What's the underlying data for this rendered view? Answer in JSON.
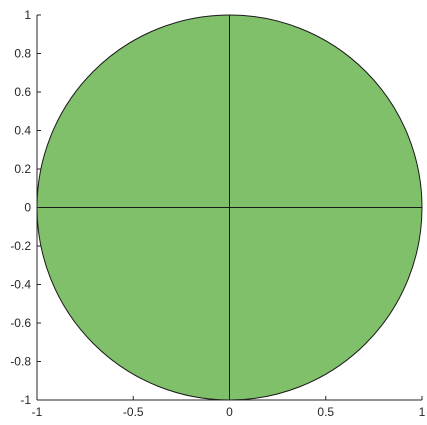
{
  "chart_data": {
    "type": "area",
    "title": "",
    "xlabel": "",
    "ylabel": "",
    "xlim": [
      -1,
      1
    ],
    "ylim": [
      -1,
      1
    ],
    "grid": false,
    "shape": {
      "kind": "unit-disk",
      "center": [
        0,
        0
      ],
      "radius": 1,
      "fill": "#80c06a",
      "divider_lines": [
        {
          "from": [
            -1,
            0
          ],
          "to": [
            1,
            0
          ]
        },
        {
          "from": [
            0,
            -1
          ],
          "to": [
            0,
            1
          ]
        }
      ]
    },
    "x_ticks": [
      {
        "value": -1,
        "label": "-1"
      },
      {
        "value": -0.5,
        "label": "-0.5"
      },
      {
        "value": 0,
        "label": "0"
      },
      {
        "value": 0.5,
        "label": "0.5"
      },
      {
        "value": 1,
        "label": "1"
      }
    ],
    "y_ticks": [
      {
        "value": -1,
        "label": "-1"
      },
      {
        "value": -0.8,
        "label": "-0.8"
      },
      {
        "value": -0.6,
        "label": "-0.6"
      },
      {
        "value": -0.4,
        "label": "-0.4"
      },
      {
        "value": -0.2,
        "label": "-0.2"
      },
      {
        "value": 0,
        "label": "0"
      },
      {
        "value": 0.2,
        "label": "0.2"
      },
      {
        "value": 0.4,
        "label": "0.4"
      },
      {
        "value": 0.6,
        "label": "0.6"
      },
      {
        "value": 0.8,
        "label": "0.8"
      },
      {
        "value": 1,
        "label": "1"
      }
    ]
  }
}
